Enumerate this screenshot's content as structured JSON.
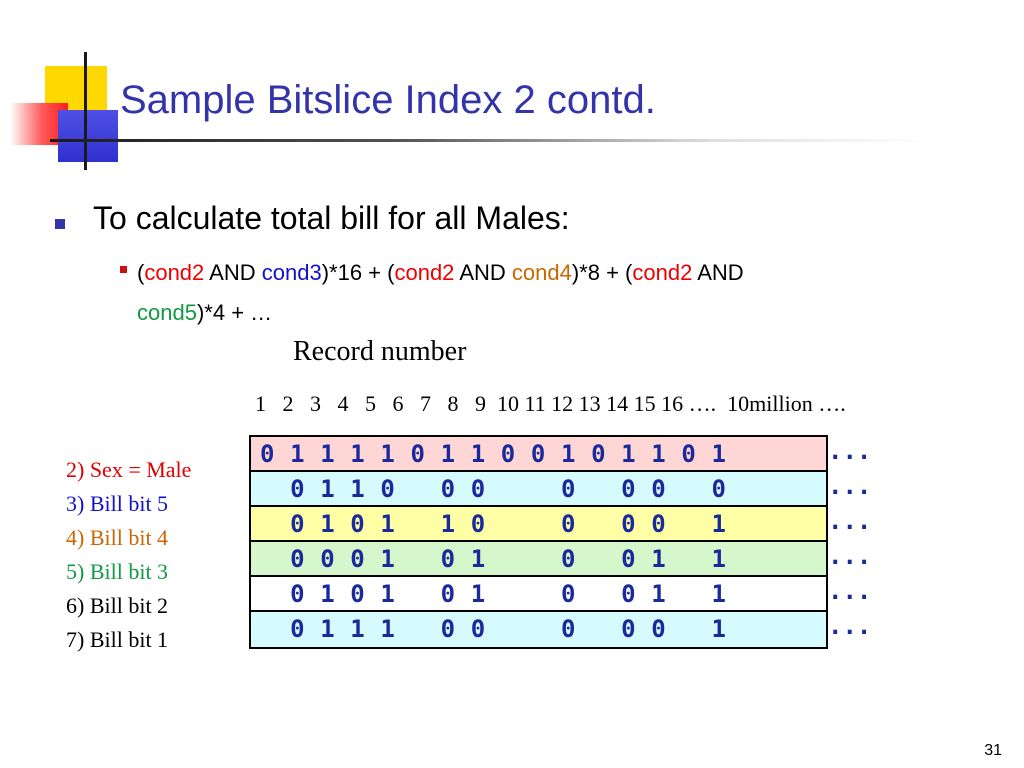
{
  "slide": {
    "title": "Sample Bitslice Index 2 contd.",
    "page_number": "31"
  },
  "bullet": {
    "text": "To calculate total bill for all Males:"
  },
  "formula": {
    "parts": [
      {
        "t": "(",
        "c": "black"
      },
      {
        "t": "cond2",
        "c": "red"
      },
      {
        "t": " AND ",
        "c": "black"
      },
      {
        "t": "cond3",
        "c": "blue"
      },
      {
        "t": ")*16 + (",
        "c": "black"
      },
      {
        "t": "cond2",
        "c": "red"
      },
      {
        "t": " AND ",
        "c": "black"
      },
      {
        "t": "cond4",
        "c": "orange"
      },
      {
        "t": ")*8 + (",
        "c": "black"
      },
      {
        "t": "cond2",
        "c": "red"
      },
      {
        "t": " AND",
        "c": "black"
      },
      {
        "t": "cond5",
        "c": "green",
        "br": true
      },
      {
        "t": ")*4 + …",
        "c": "black"
      }
    ]
  },
  "table": {
    "header": "Record number",
    "record_ids": "1   2   3   4   5   6   7   8   9  10 11 12 13 14 15 16 ….  10million ….",
    "rows": [
      {
        "label": "2) Sex = Male",
        "label_color": "#dd0000",
        "bits": "0 1 1 1 1 0 1 1 0 0 1 0 1 1 0 1",
        "bg": "#ffd6d6",
        "ellipsis": "..."
      },
      {
        "label": "3) Bill bit 5",
        "label_color": "#1111cc",
        "bits": "  0 1 1 0   0 0     0   0 0   0",
        "bg": "#d6fbff",
        "ellipsis": "..."
      },
      {
        "label": "4) Bill bit 4",
        "label_color": "#cc6600",
        "bits": "  0 1 0 1   1 0     0   0 0   1",
        "bg": "#ffffa6",
        "ellipsis": "..."
      },
      {
        "label": "5) Bill bit 3",
        "label_color": "#119944",
        "bits": "  0 0 0 1   0 1     0   0 1   1",
        "bg": "#d6f6cc",
        "ellipsis": "..."
      },
      {
        "label": "6) Bill bit 2",
        "label_color": "#000000",
        "bits": "  0 1 0 1   0 1     0   0 1   1",
        "bg": "#ffffff",
        "ellipsis": "..."
      },
      {
        "label": "7) Bill bit 1",
        "label_color": "#000000",
        "bits": "  0 1 1 1   0 0     0   0 0   1",
        "bg": "#d6fbff",
        "ellipsis": "..."
      }
    ]
  },
  "colors": {
    "title": "#3333aa",
    "bits": "#1a2a9a",
    "red": "#ee0000",
    "blue": "#1111cc",
    "orange": "#cc6600",
    "green": "#119944"
  }
}
